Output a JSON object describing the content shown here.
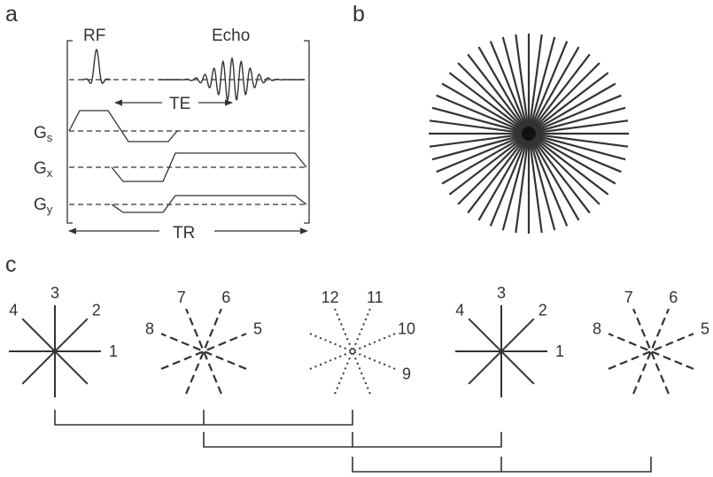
{
  "panels": {
    "a": "a",
    "b": "b",
    "c": "c"
  },
  "sequence": {
    "rf": "RF",
    "echo": "Echo",
    "te": "TE",
    "tr": "TR",
    "gs_main": "G",
    "gs_sub": "s",
    "gx_main": "G",
    "gx_sub": "x",
    "gy_main": "G",
    "gy_sub": "y"
  },
  "radial": {
    "spokes": 24
  },
  "interleaves": {
    "groups": [
      {
        "numbers": [
          "1",
          "2",
          "3",
          "4"
        ],
        "style": "solid"
      },
      {
        "numbers": [
          "5",
          "6",
          "7",
          "8"
        ],
        "style": "dashed"
      },
      {
        "numbers": [
          "9",
          "10",
          "11",
          "12"
        ],
        "style": "dotted"
      },
      {
        "numbers": [
          "1",
          "2",
          "3",
          "4"
        ],
        "style": "solid"
      },
      {
        "numbers": [
          "5",
          "6",
          "7",
          "8"
        ],
        "style": "dashed"
      }
    ]
  },
  "colors": {
    "ink": "#333333",
    "background": "#ffffff"
  }
}
